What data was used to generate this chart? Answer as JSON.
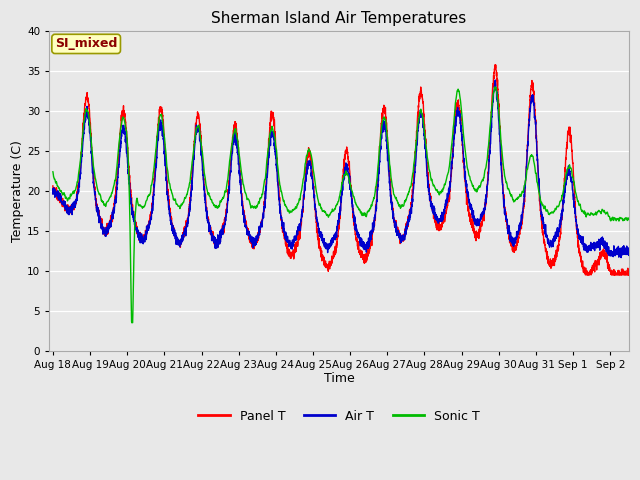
{
  "title": "Sherman Island Air Temperatures",
  "xlabel": "Time",
  "ylabel": "Temperature (C)",
  "ylim": [
    0,
    40
  ],
  "yticks": [
    0,
    5,
    10,
    15,
    20,
    25,
    30,
    35,
    40
  ],
  "x_labels": [
    "Aug 18",
    "Aug 19",
    "Aug 20",
    "Aug 21",
    "Aug 22",
    "Aug 23",
    "Aug 24",
    "Aug 25",
    "Aug 26",
    "Aug 27",
    "Aug 28",
    "Aug 29",
    "Aug 30",
    "Aug 31",
    "Sep 1",
    "Sep 2"
  ],
  "annotation_text": "SI_mixed",
  "annotation_color": "#8B0000",
  "annotation_bg": "#FFFFC0",
  "annotation_edge": "#999900",
  "panel_color": "#FF0000",
  "air_color": "#0000CC",
  "sonic_color": "#00BB00",
  "plot_bg_color": "#E8E8E8",
  "fig_bg_color": "#E8E8E8",
  "grid_color": "#FFFFFF",
  "title_fontsize": 11,
  "axis_label_fontsize": 9,
  "tick_fontsize": 7.5,
  "line_width": 1.0,
  "legend_fontsize": 9
}
